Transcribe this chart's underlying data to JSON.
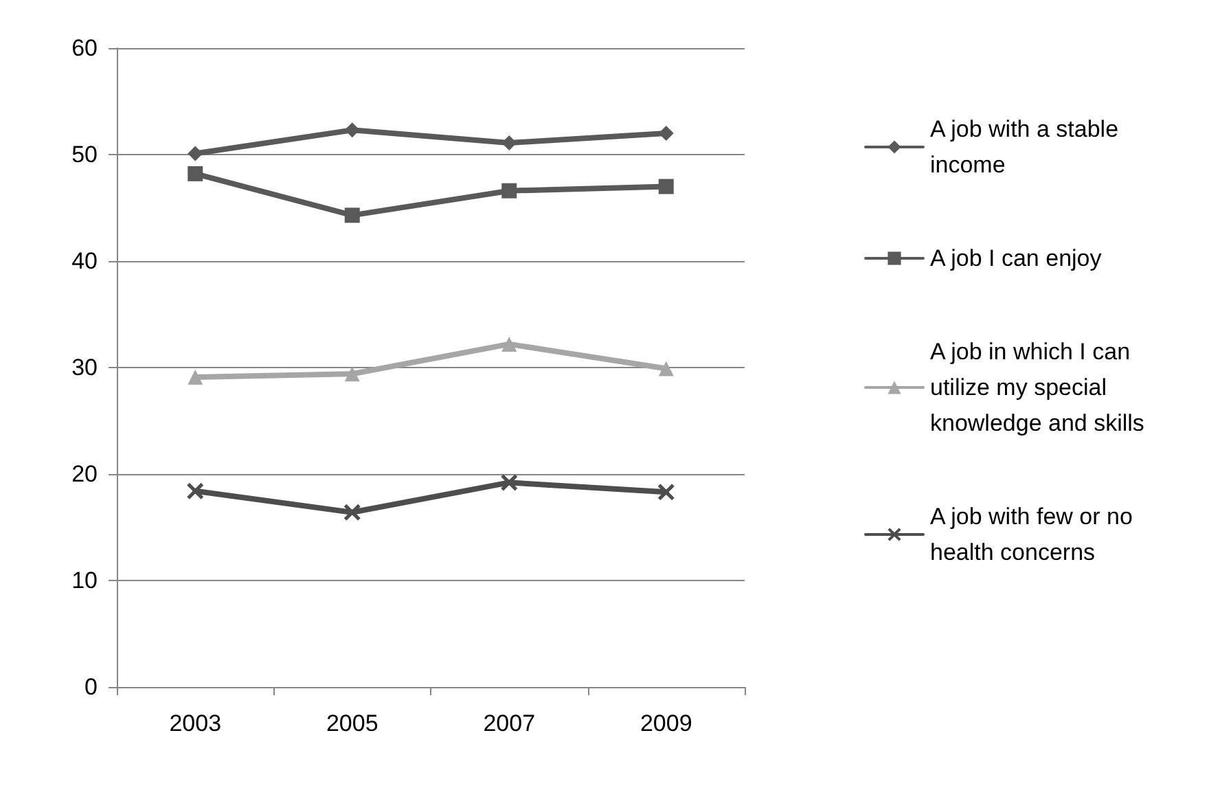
{
  "chart_data": {
    "type": "line",
    "categories": [
      "2003",
      "2005",
      "2007",
      "2009"
    ],
    "ylim": [
      0,
      60
    ],
    "yticks": [
      0,
      10,
      20,
      30,
      40,
      50,
      60
    ],
    "grid": "y",
    "legend": "right",
    "line_style": "solid",
    "series": [
      {
        "name": "A job with a stable income",
        "color": "#595959",
        "marker": "diamond",
        "values": [
          50.1,
          52.3,
          51.1,
          52.0
        ]
      },
      {
        "name": "A job I can enjoy",
        "color": "#595959",
        "marker": "square",
        "values": [
          48.2,
          44.3,
          46.6,
          47.0
        ]
      },
      {
        "name": "A job in which I can utilize my special knowledge and skills",
        "color": "#a6a6a6",
        "marker": "triangle",
        "values": [
          29.1,
          29.4,
          32.2,
          29.9
        ]
      },
      {
        "name": "A job with few or no health concerns",
        "color": "#4d4d4d",
        "marker": "cross",
        "values": [
          18.4,
          16.4,
          19.2,
          18.3
        ]
      }
    ]
  }
}
